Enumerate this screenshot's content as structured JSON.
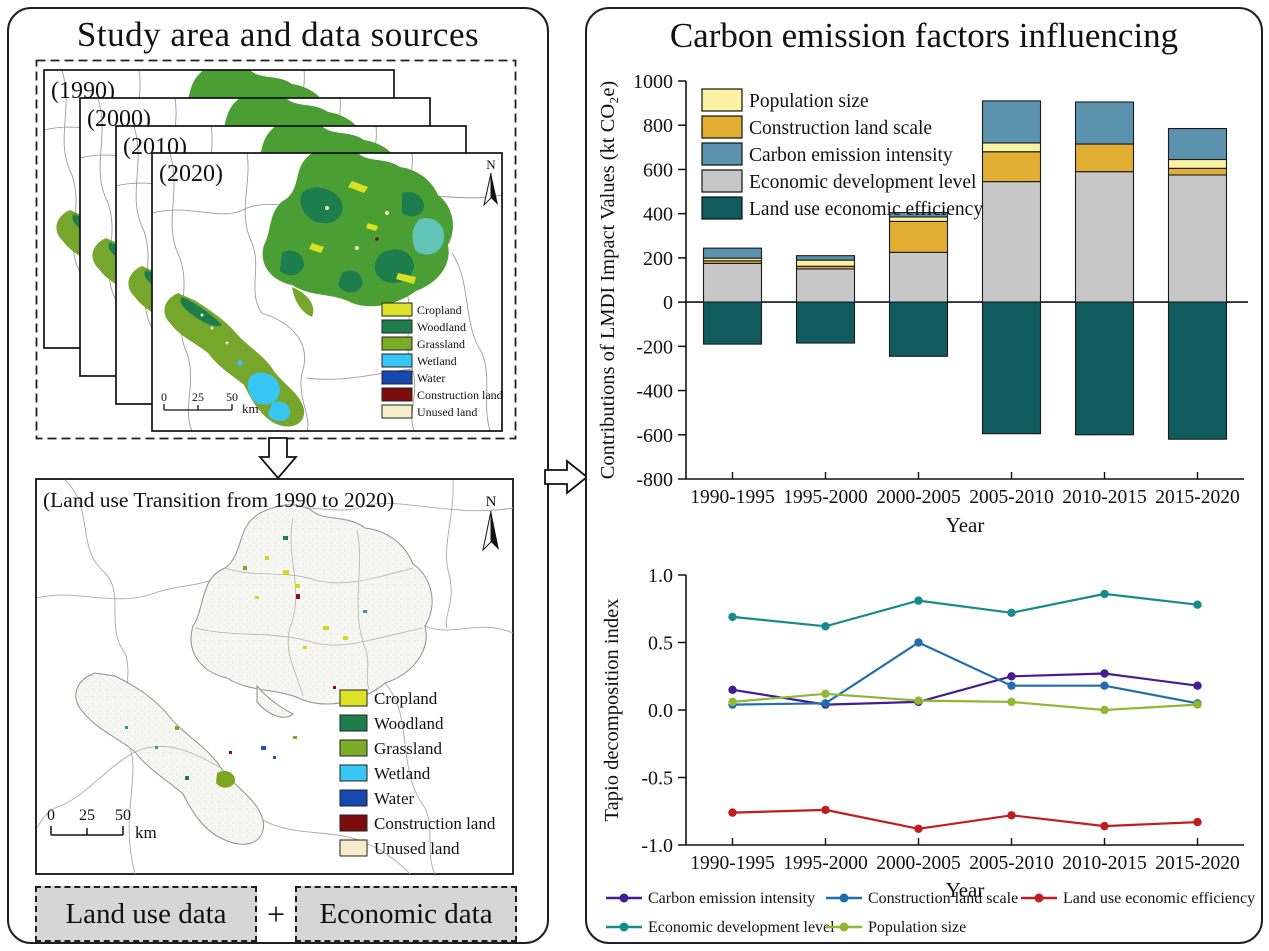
{
  "left_panel": {
    "title": "Study area and data sources",
    "map_years": [
      "(1990)",
      "(2000)",
      "(2010)",
      "(2020)"
    ],
    "map_legend": [
      {
        "label": "Cropland",
        "color": "#dce226"
      },
      {
        "label": "Woodland",
        "color": "#1e7d4d"
      },
      {
        "label": "Grassland",
        "color": "#7cab26"
      },
      {
        "label": "Wetland",
        "color": "#38c6f4"
      },
      {
        "label": "Water",
        "color": "#1649b0"
      },
      {
        "label": "Construction land",
        "color": "#7d0d0d"
      },
      {
        "label": "Unused land",
        "color": "#f7edca"
      }
    ],
    "north_label": "N",
    "scale_bar": {
      "ticks": [
        "0",
        "25",
        "50"
      ],
      "unit": "km"
    },
    "transition_map_title": "(Land use Transition from 1990 to 2020)",
    "data_boxes": {
      "left": "Land use data",
      "plus": "+",
      "right": "Economic data"
    }
  },
  "right_panel": {
    "title": "Carbon emission factors influencing"
  },
  "chart_data": [
    {
      "type": "bar",
      "stacked": true,
      "categories": [
        "1990-1995",
        "1995-2000",
        "2000-2005",
        "2005-2010",
        "2010-2015",
        "2015-2020"
      ],
      "series": [
        {
          "name": "Economic development level",
          "color": "#c7c7c8",
          "values": [
            175,
            150,
            225,
            545,
            590,
            575
          ]
        },
        {
          "name": "Construction land scale",
          "color": "#e2ad33",
          "values": [
            12,
            12,
            140,
            135,
            125,
            30
          ]
        },
        {
          "name": "Population size",
          "color": "#faf2a2",
          "values": [
            12,
            28,
            20,
            40,
            0,
            40
          ]
        },
        {
          "name": "Carbon emission intensity",
          "color": "#5b93af",
          "values": [
            45,
            20,
            20,
            190,
            190,
            140
          ]
        },
        {
          "name": "Land use economic efficiency",
          "color": "#0f5b5e",
          "values": [
            -190,
            -185,
            -245,
            -595,
            -600,
            -620
          ]
        }
      ],
      "legend_order": [
        "Population size",
        "Construction land scale",
        "Carbon emission intensity",
        "Economic development level",
        "Land use economic efficiency"
      ],
      "xlabel": "Year",
      "ylabel": "Contributions of LMDI Impact Values (kt CO₂e)",
      "ylim": [
        -800,
        1000
      ],
      "yticks": [
        1000,
        800,
        600,
        400,
        200,
        0,
        -200,
        -400,
        -600,
        -800
      ],
      "legend_position": "top-left-inside",
      "grid": false
    },
    {
      "type": "line",
      "categories": [
        "1990-1995",
        "1995-2000",
        "2000-2005",
        "2005-2010",
        "2010-2015",
        "2015-2020"
      ],
      "series": [
        {
          "name": "Carbon emission intensity",
          "color": "#451d90",
          "values": [
            0.15,
            0.04,
            0.06,
            0.25,
            0.27,
            0.18
          ]
        },
        {
          "name": "Construction land scale",
          "color": "#1f6fae",
          "values": [
            0.04,
            0.05,
            0.5,
            0.18,
            0.18,
            0.05
          ]
        },
        {
          "name": "Land use economic efficiency",
          "color": "#c01d20",
          "values": [
            -0.76,
            -0.74,
            -0.88,
            -0.78,
            -0.86,
            -0.83
          ]
        },
        {
          "name": "Economic development level",
          "color": "#18898c",
          "values": [
            0.69,
            0.62,
            0.81,
            0.72,
            0.86,
            0.78
          ]
        },
        {
          "name": "Population size",
          "color": "#8fb832",
          "values": [
            0.06,
            0.12,
            0.07,
            0.06,
            0.0,
            0.04
          ]
        }
      ],
      "legend_rows": [
        [
          "Carbon emission intensity",
          "Construction land scale",
          "Land use economic efficiency"
        ],
        [
          "Economic development level",
          "Population size"
        ]
      ],
      "xlabel": "Year",
      "ylabel": "Tapio decomposition index",
      "ylim": [
        -1.0,
        1.0
      ],
      "yticks": [
        1.0,
        0.5,
        0.0,
        -0.5,
        -1.0
      ],
      "legend_position": "bottom",
      "grid": false
    }
  ]
}
